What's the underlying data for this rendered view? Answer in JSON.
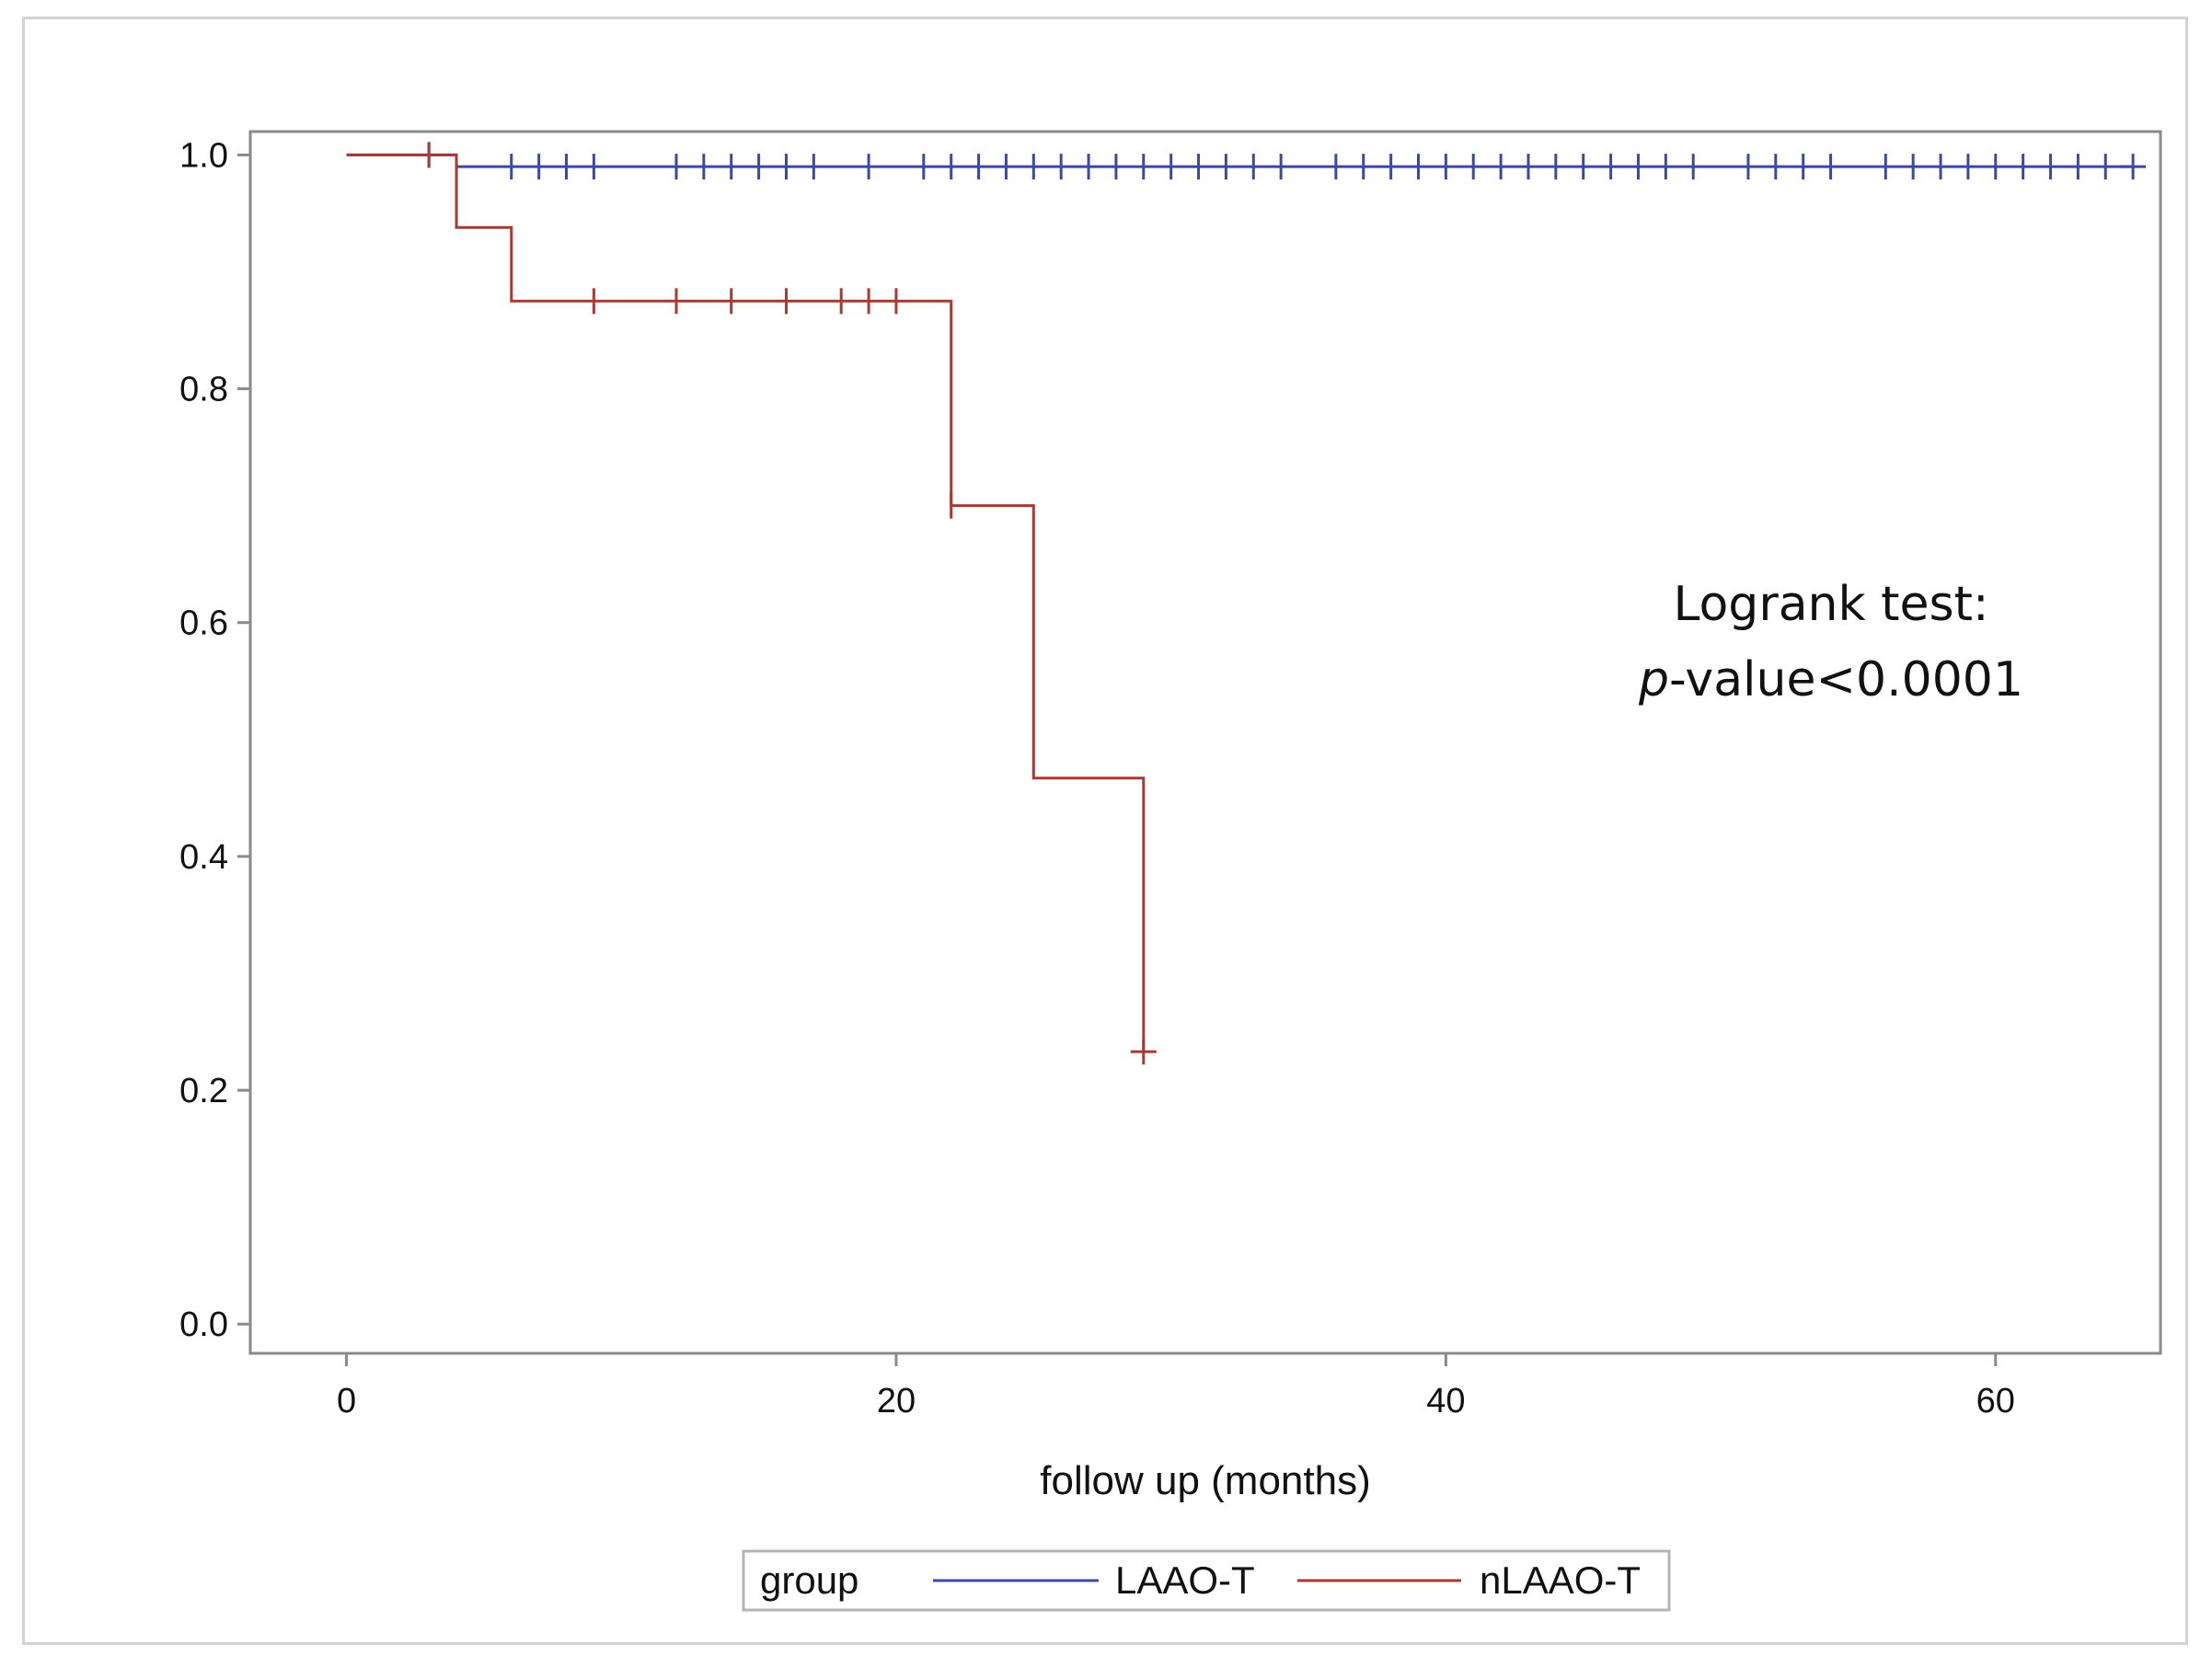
{
  "chart_data": {
    "type": "line",
    "subtype": "kaplan-meier step",
    "xlabel": "follow up (months)",
    "ylabel": "",
    "xlim": [
      -3.5,
      66
    ],
    "ylim": [
      -0.025,
      1.02
    ],
    "xticks": [
      0,
      20,
      40,
      60
    ],
    "xtick_labels": [
      "0",
      "20",
      "40",
      "60"
    ],
    "yticks": [
      0.0,
      0.2,
      0.4,
      0.6,
      0.8,
      1.0
    ],
    "ytick_labels": [
      "0.0",
      "0.2",
      "0.4",
      "0.6",
      "0.8",
      "1.0"
    ],
    "grid": false,
    "annotation": {
      "line1": "Logrank test:",
      "line2_italic": "p",
      "line2_rest": "-value<0.0001"
    },
    "legend": {
      "title": "group",
      "position": "bottom-center",
      "entries": [
        "LAAO-T",
        "nLAAO-T"
      ]
    },
    "series": [
      {
        "name": "LAAO-T",
        "color": "#3b4aa0",
        "steps": [
          [
            0,
            1.0
          ],
          [
            4,
            0.99
          ],
          [
            65,
            0.99
          ]
        ],
        "censored": [
          3,
          6,
          7,
          8,
          9,
          12,
          13,
          14,
          15,
          16,
          17,
          19,
          21,
          22,
          23,
          24,
          25,
          26,
          27,
          28,
          29,
          30,
          31,
          32,
          33,
          34,
          36,
          37,
          38,
          39,
          40,
          41,
          42,
          43,
          44,
          45,
          46,
          47,
          48,
          49,
          51,
          52,
          53,
          54,
          56,
          57,
          58,
          59,
          60,
          61,
          62,
          63,
          64,
          65
        ]
      },
      {
        "name": "nLAAO-T",
        "color": "#a83a33",
        "steps": [
          [
            0,
            1.0
          ],
          [
            4,
            0.938
          ],
          [
            6,
            0.875
          ],
          [
            22,
            0.7
          ],
          [
            25,
            0.467
          ],
          [
            29,
            0.233
          ]
        ],
        "censored": [
          3,
          9,
          12,
          14,
          16,
          18,
          19,
          20,
          22,
          29
        ]
      }
    ]
  }
}
